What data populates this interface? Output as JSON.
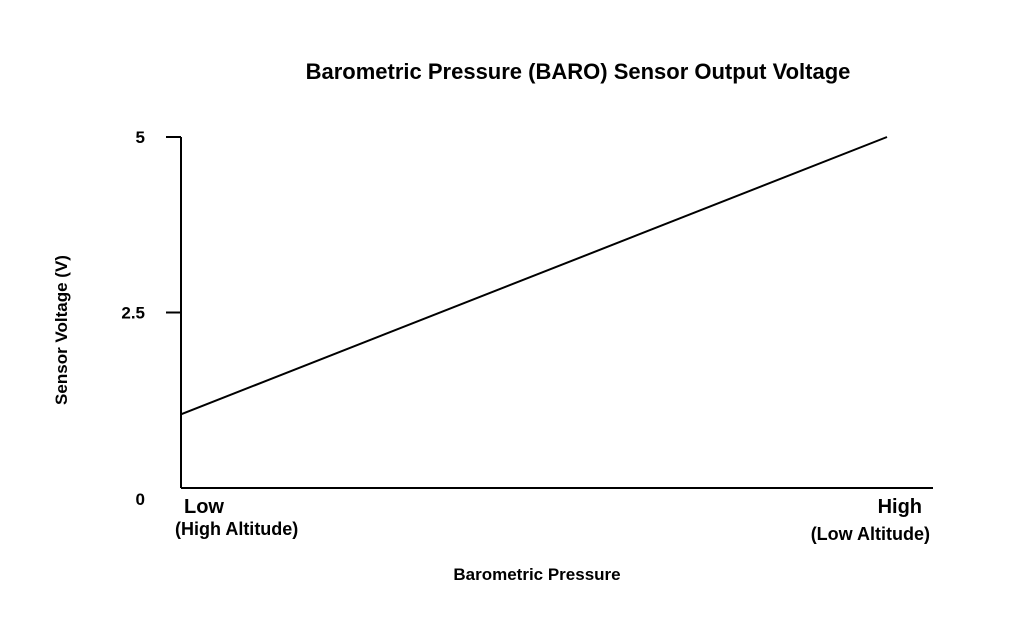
{
  "chart_data": {
    "type": "line",
    "title": "Barometric Pressure (BARO) Sensor Output Voltage",
    "xlabel": "Barometric Pressure",
    "ylabel": "Sensor Voltage (V)",
    "x_tick_labels": [
      {
        "line1": "Low",
        "line2": "(High Altitude)"
      },
      {
        "line1": "High",
        "line2": "(Low Altitude)"
      }
    ],
    "y_ticks": [
      {
        "value": 0,
        "label": "0"
      },
      {
        "value": 2.5,
        "label": "2.5"
      },
      {
        "value": 5,
        "label": "5"
      }
    ],
    "ylim": [
      0,
      5
    ],
    "xlim": [
      0,
      1
    ],
    "series": [
      {
        "x": [
          0,
          1
        ],
        "values": [
          1.05,
          5.0
        ]
      }
    ],
    "grid": false,
    "colors": {
      "line": "#000000",
      "axis": "#000000"
    }
  }
}
